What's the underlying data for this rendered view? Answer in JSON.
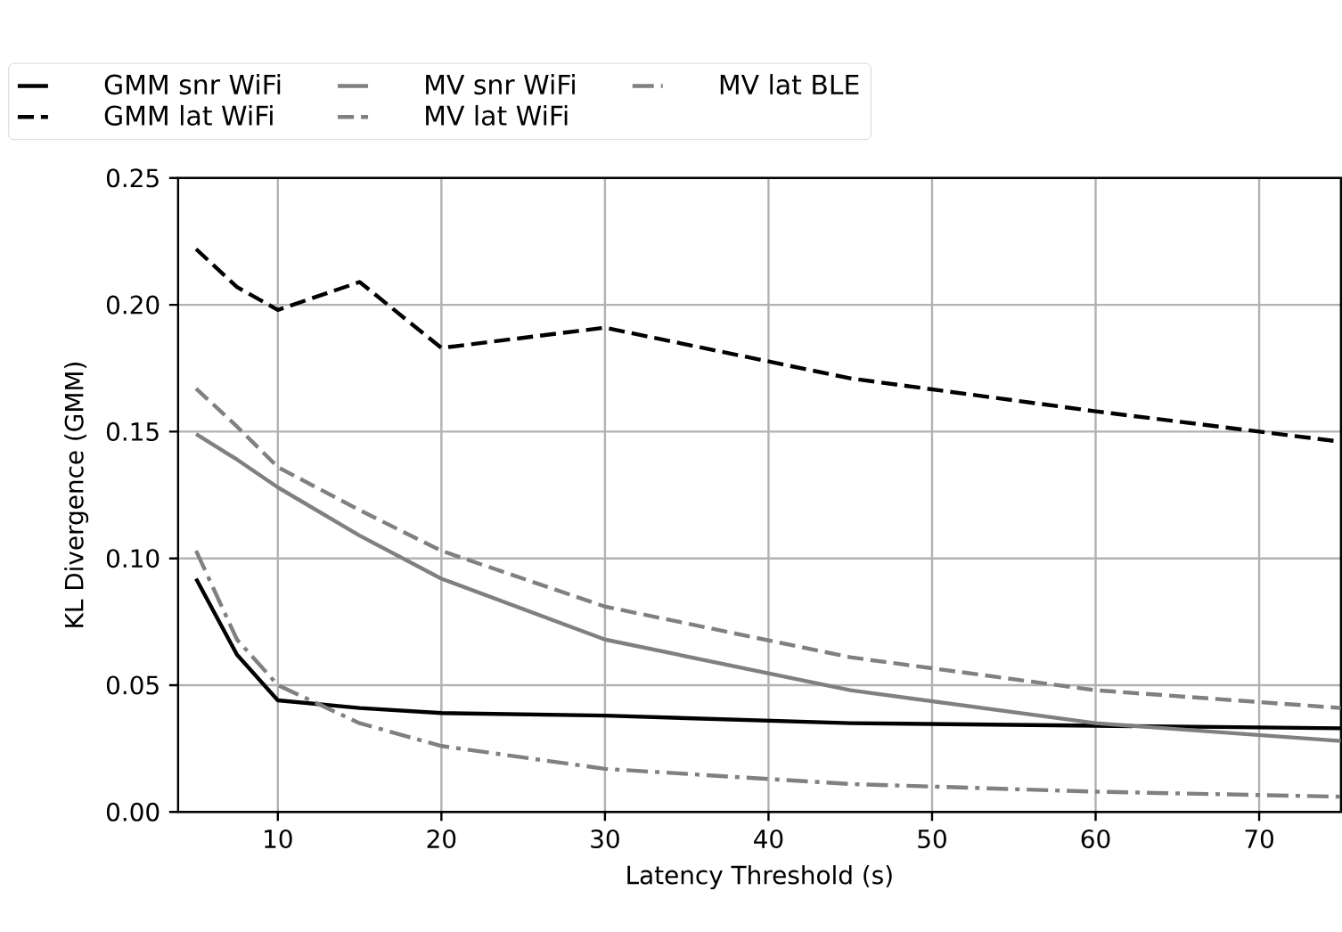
{
  "chart_data": {
    "type": "line",
    "xlabel": "Latency Threshold (s)",
    "ylabel": "KL Divergence (GMM)",
    "x": [
      5,
      7.5,
      10,
      15,
      20,
      30,
      45,
      60,
      75
    ],
    "xlim": [
      3.9,
      75
    ],
    "ylim": [
      0,
      0.25
    ],
    "xticks": [
      10,
      20,
      30,
      40,
      50,
      60,
      70
    ],
    "yticks": [
      {
        "value": 0,
        "label": "0.00"
      },
      {
        "value": 0.05,
        "label": "0.05"
      },
      {
        "value": 0.1,
        "label": "0.10"
      },
      {
        "value": 0.15,
        "label": "0.15"
      },
      {
        "value": 0.2,
        "label": "0.20"
      },
      {
        "value": 0.25,
        "label": "0.25"
      }
    ],
    "grid": true,
    "legend": "top",
    "marker": "none",
    "series": [
      {
        "name": "GMM snr WiFi",
        "color": "#000000",
        "line_style": "solid",
        "values": [
          0.092,
          0.062,
          0.044,
          0.041,
          0.039,
          0.038,
          0.035,
          0.034,
          0.033
        ]
      },
      {
        "name": "GMM lat WiFi",
        "color": "#000000",
        "line_style": "dashed",
        "values": [
          0.222,
          0.207,
          0.198,
          0.209,
          0.183,
          0.191,
          0.171,
          0.158,
          0.146
        ]
      },
      {
        "name": "MV snr WiFi",
        "color": "#808080",
        "line_style": "solid",
        "values": [
          0.149,
          0.139,
          0.128,
          0.109,
          0.092,
          0.068,
          0.048,
          0.035,
          0.028
        ]
      },
      {
        "name": "MV lat WiFi",
        "color": "#808080",
        "line_style": "dashed",
        "values": [
          0.167,
          0.152,
          0.136,
          0.119,
          0.103,
          0.081,
          0.061,
          0.048,
          0.041
        ]
      },
      {
        "name": "MV lat BLE",
        "color": "#808080",
        "line_style": "dashdot",
        "values": [
          0.103,
          0.068,
          0.05,
          0.035,
          0.026,
          0.017,
          0.011,
          0.008,
          0.006
        ]
      }
    ]
  }
}
